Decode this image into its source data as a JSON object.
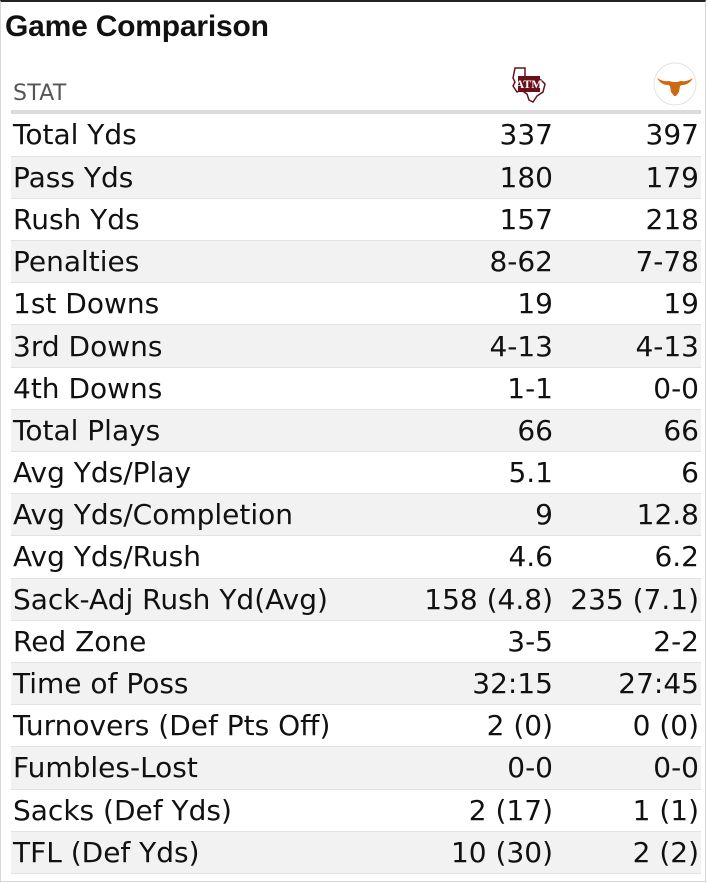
{
  "title": "Game Comparison",
  "header": {
    "stat_label": "STAT",
    "team_a_icon": "texas-am-logo-icon",
    "team_b_icon": "texas-longhorn-logo-icon"
  },
  "colors": {
    "texas_am_maroon": "#6b0f1a",
    "texas_orange": "#cc6a14",
    "row_alt": "#f2f2f2"
  },
  "rows": [
    {
      "stat": "Total Yds",
      "a": "337",
      "b": "397"
    },
    {
      "stat": "Pass Yds",
      "a": "180",
      "b": "179"
    },
    {
      "stat": "Rush Yds",
      "a": "157",
      "b": "218"
    },
    {
      "stat": "Penalties",
      "a": "8-62",
      "b": "7-78"
    },
    {
      "stat": "1st Downs",
      "a": "19",
      "b": "19"
    },
    {
      "stat": "3rd Downs",
      "a": "4-13",
      "b": "4-13"
    },
    {
      "stat": "4th Downs",
      "a": "1-1",
      "b": "0-0"
    },
    {
      "stat": "Total Plays",
      "a": "66",
      "b": "66"
    },
    {
      "stat": "Avg Yds/Play",
      "a": "5.1",
      "b": "6"
    },
    {
      "stat": "Avg Yds/Completion",
      "a": "9",
      "b": "12.8"
    },
    {
      "stat": "Avg Yds/Rush",
      "a": "4.6",
      "b": "6.2"
    },
    {
      "stat": "Sack-Adj Rush Yd(Avg)",
      "a": "158 (4.8)",
      "b": "235 (7.1)"
    },
    {
      "stat": "Red Zone",
      "a": "3-5",
      "b": "2-2"
    },
    {
      "stat": "Time of Poss",
      "a": "32:15",
      "b": "27:45"
    },
    {
      "stat": "Turnovers (Def Pts Off)",
      "a": "2 (0)",
      "b": "0 (0)"
    },
    {
      "stat": "Fumbles-Lost",
      "a": "0-0",
      "b": "0-0"
    },
    {
      "stat": "Sacks (Def Yds)",
      "a": "2 (17)",
      "b": "1 (1)"
    },
    {
      "stat": "TFL (Def Yds)",
      "a": "10 (30)",
      "b": "2 (2)"
    }
  ]
}
